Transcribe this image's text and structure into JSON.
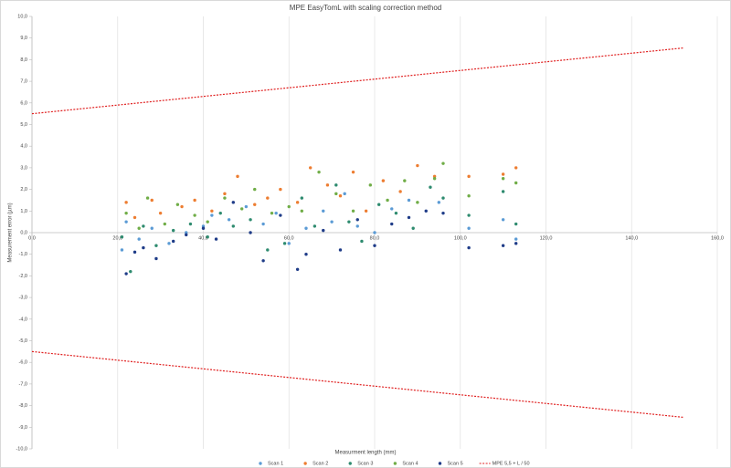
{
  "chart_data": {
    "type": "scatter",
    "title": "MPE EasyTomL with scaling correction method",
    "x_label": "Measurment length (mm)",
    "y_label": "Measurement error (µm)",
    "xlim": [
      0,
      160
    ],
    "ylim": [
      -10,
      10
    ],
    "xticks": [
      {
        "value": 0,
        "label": "0,0"
      },
      {
        "value": 20,
        "label": "20,0"
      },
      {
        "value": 40,
        "label": "40,0"
      },
      {
        "value": 60,
        "label": "60,0"
      },
      {
        "value": 80,
        "label": "80,0"
      },
      {
        "value": 100,
        "label": "100,0"
      },
      {
        "value": 120,
        "label": "120,0"
      },
      {
        "value": 140,
        "label": "140,0"
      },
      {
        "value": 160,
        "label": "160,0"
      }
    ],
    "yticks": [
      {
        "value": 10,
        "label": "10,0"
      },
      {
        "value": 9,
        "label": "9,0"
      },
      {
        "value": 8,
        "label": "8,0"
      },
      {
        "value": 7,
        "label": "7,0"
      },
      {
        "value": 6,
        "label": "6,0"
      },
      {
        "value": 5,
        "label": "5,0"
      },
      {
        "value": 4,
        "label": "4,0"
      },
      {
        "value": 3,
        "label": "3,0"
      },
      {
        "value": 2,
        "label": "2,0"
      },
      {
        "value": 1,
        "label": "1,0"
      },
      {
        "value": 0,
        "label": "0,0"
      },
      {
        "value": -1,
        "label": "-1,0"
      },
      {
        "value": -2,
        "label": "-2,0"
      },
      {
        "value": -3,
        "label": "-3,0"
      },
      {
        "value": -4,
        "label": "-4,0"
      },
      {
        "value": -5,
        "label": "-5,0"
      },
      {
        "value": -6,
        "label": "-6,0"
      },
      {
        "value": -7,
        "label": "-7,0"
      },
      {
        "value": -8,
        "label": "-8,0"
      },
      {
        "value": -9,
        "label": "-9,0"
      },
      {
        "value": -10,
        "label": "-10,0"
      }
    ],
    "grid": "x",
    "legend": "bottom",
    "series": [
      {
        "name": "Scan 1",
        "color": "#5b9bd5",
        "style": "marker",
        "x": [
          21,
          22,
          25,
          28,
          32,
          36,
          40,
          42,
          46,
          50,
          54,
          57,
          60,
          64,
          68,
          70,
          73,
          76,
          80,
          84,
          88,
          95,
          102,
          110,
          113
        ],
        "values": [
          -0.8,
          0.5,
          -0.3,
          0.2,
          -0.5,
          0.0,
          0.3,
          0.8,
          0.6,
          1.2,
          0.4,
          0.9,
          -0.5,
          0.2,
          1.0,
          0.5,
          1.8,
          0.3,
          0.0,
          1.1,
          1.5,
          1.4,
          0.2,
          0.6,
          -0.3
        ]
      },
      {
        "name": "Scan 2",
        "color": "#ed7d31",
        "style": "marker",
        "x": [
          22,
          24,
          28,
          30,
          35,
          38,
          42,
          45,
          48,
          52,
          55,
          58,
          62,
          65,
          69,
          72,
          75,
          78,
          82,
          86,
          90,
          94,
          102,
          110,
          113
        ],
        "values": [
          1.4,
          0.7,
          1.5,
          0.9,
          1.2,
          1.5,
          1.0,
          1.8,
          2.6,
          1.3,
          1.6,
          2.0,
          1.4,
          3.0,
          2.2,
          1.7,
          2.8,
          1.0,
          2.4,
          1.9,
          3.1,
          2.6,
          2.6,
          2.7,
          3.0
        ]
      },
      {
        "name": "Scan 3",
        "color": "#2e8b6f",
        "style": "marker",
        "x": [
          21,
          23,
          26,
          29,
          33,
          37,
          41,
          44,
          47,
          51,
          55,
          59,
          63,
          66,
          71,
          74,
          77,
          81,
          85,
          89,
          93,
          96,
          102,
          110,
          113
        ],
        "values": [
          -0.2,
          -1.8,
          0.3,
          -0.6,
          0.1,
          0.4,
          -0.2,
          0.9,
          0.3,
          0.6,
          -0.8,
          -0.5,
          1.6,
          0.3,
          2.2,
          0.5,
          -0.4,
          1.3,
          0.9,
          0.2,
          2.1,
          1.6,
          0.8,
          1.9,
          0.4
        ]
      },
      {
        "name": "Scan 4",
        "color": "#70ad47",
        "style": "marker",
        "x": [
          22,
          25,
          27,
          31,
          34,
          38,
          41,
          45,
          49,
          52,
          56,
          60,
          63,
          67,
          71,
          75,
          79,
          83,
          87,
          90,
          94,
          96,
          102,
          110,
          113
        ],
        "values": [
          0.9,
          0.2,
          1.6,
          0.4,
          1.3,
          0.8,
          0.5,
          1.6,
          1.1,
          2.0,
          0.9,
          1.2,
          1.0,
          2.8,
          1.8,
          1.0,
          2.2,
          1.5,
          2.4,
          1.4,
          2.5,
          3.2,
          1.7,
          2.5,
          2.3
        ]
      },
      {
        "name": "Scan 5",
        "color": "#1f3c88",
        "style": "marker",
        "x": [
          22,
          24,
          26,
          29,
          33,
          36,
          40,
          43,
          47,
          51,
          54,
          58,
          62,
          64,
          68,
          72,
          76,
          80,
          84,
          88,
          92,
          96,
          102,
          110,
          113
        ],
        "values": [
          -1.9,
          -0.9,
          -0.7,
          -1.2,
          -0.4,
          -0.1,
          0.2,
          -0.3,
          1.4,
          0.0,
          -1.3,
          0.8,
          -1.7,
          -1.0,
          0.1,
          -0.8,
          0.6,
          -0.6,
          0.4,
          0.7,
          1.0,
          0.9,
          -0.7,
          -0.6,
          -0.5
        ]
      },
      {
        "name": "MPE 5,5 + L / 50",
        "color": "#e02020",
        "style": "dashed-line",
        "x": [
          0,
          152,
          null,
          0,
          152
        ],
        "values": [
          5.5,
          8.54,
          null,
          -5.5,
          -8.54
        ]
      }
    ]
  }
}
